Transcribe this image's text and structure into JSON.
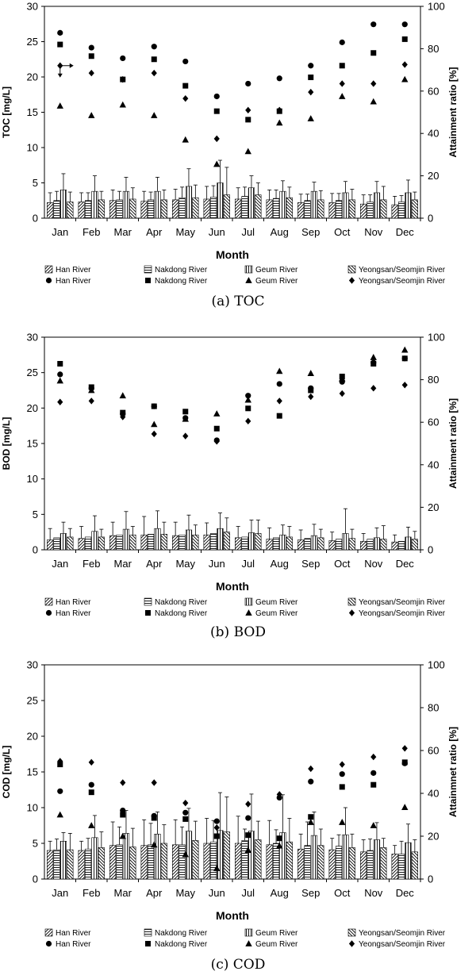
{
  "chart_data": [
    {
      "type": "bar",
      "caption": "(a) TOC",
      "categories": [
        "Jan",
        "Feb",
        "Mar",
        "Apr",
        "May",
        "Jun",
        "Jul",
        "Aug",
        "Sep",
        "Oct",
        "Nov",
        "Dec"
      ],
      "xlabel": "Month",
      "ylabel": "TOC [mg/L]",
      "y2label": "Attainment ratio [%]",
      "ylim": [
        0,
        30
      ],
      "y2lim": [
        0,
        100
      ],
      "yticks": [
        0,
        5,
        10,
        15,
        20,
        25,
        30
      ],
      "y2ticks": [
        0,
        20,
        40,
        60,
        80,
        100
      ],
      "series": [
        {
          "name": "Han River",
          "kind": "bar",
          "pattern": "diag",
          "values": [
            2.2,
            2.3,
            2.5,
            2.4,
            2.6,
            2.7,
            2.7,
            2.6,
            2.2,
            2.2,
            2.0,
            1.9
          ],
          "errors": [
            1.4,
            1.3,
            1.5,
            1.4,
            1.5,
            1.8,
            1.6,
            1.4,
            1.2,
            1.3,
            1.3,
            1.2
          ]
        },
        {
          "name": "Nakdong River",
          "kind": "bar",
          "pattern": "hlines",
          "values": [
            2.5,
            2.5,
            2.6,
            2.6,
            2.9,
            3.0,
            3.1,
            2.8,
            2.5,
            2.5,
            2.3,
            2.3
          ],
          "errors": [
            1.3,
            1.1,
            1.2,
            1.1,
            1.5,
            1.6,
            1.3,
            1.2,
            0.9,
            1.0,
            1.0,
            0.9
          ]
        },
        {
          "name": "Geum River",
          "kind": "bar",
          "pattern": "vlines",
          "values": [
            4.0,
            3.8,
            3.8,
            3.8,
            4.5,
            5.0,
            4.3,
            3.8,
            3.8,
            3.6,
            3.6,
            3.6
          ],
          "errors": [
            2.3,
            2.2,
            2.0,
            2.0,
            2.5,
            3.2,
            1.7,
            1.5,
            1.3,
            1.6,
            1.6,
            1.8
          ]
        },
        {
          "name": "Yeongsan/Seomjin River",
          "kind": "bar",
          "pattern": "backdiag",
          "values": [
            2.3,
            2.6,
            2.7,
            2.6,
            2.9,
            3.3,
            3.3,
            2.9,
            2.6,
            2.6,
            2.6,
            2.6
          ],
          "errors": [
            1.4,
            1.2,
            1.6,
            1.4,
            1.8,
            3.9,
            1.7,
            1.5,
            1.3,
            1.5,
            1.9,
            1.1
          ]
        },
        {
          "name": "Han River",
          "kind": "marker",
          "marker": "circle",
          "axis": "right",
          "values": [
            87.5,
            80.5,
            75.5,
            81.0,
            74.0,
            57.5,
            63.5,
            66.0,
            72.0,
            83.0,
            91.5,
            91.5
          ]
        },
        {
          "name": "Nakdong River",
          "kind": "marker",
          "marker": "square",
          "axis": "right",
          "values": [
            82.0,
            76.5,
            65.5,
            75.0,
            62.5,
            50.5,
            46.5,
            50.5,
            66.5,
            72.0,
            78.0,
            84.5
          ]
        },
        {
          "name": "Geum River",
          "kind": "marker",
          "marker": "triangle",
          "axis": "right",
          "values": [
            53.0,
            48.5,
            53.5,
            48.5,
            37.0,
            25.5,
            31.5,
            45.0,
            47.0,
            57.5,
            55.0,
            65.5
          ]
        },
        {
          "name": "Yeongsan/Seomjin River",
          "kind": "marker",
          "marker": "diamond",
          "axis": "right",
          "values": [
            72.0,
            68.5,
            65.5,
            68.5,
            56.5,
            37.5,
            51.0,
            51.0,
            59.5,
            63.5,
            63.5,
            72.5
          ]
        }
      ]
    },
    {
      "type": "bar",
      "caption": "(b) BOD",
      "categories": [
        "Jan",
        "Feb",
        "Mar",
        "Apr",
        "May",
        "Jun",
        "Jul",
        "Aug",
        "Sep",
        "Oct",
        "Nov",
        "Dec"
      ],
      "xlabel": "Month",
      "ylabel": "BOD [mg/L]",
      "y2label": "Attainment ratio [%]",
      "ylim": [
        0,
        30
      ],
      "y2lim": [
        0,
        100
      ],
      "yticks": [
        0,
        5,
        10,
        15,
        20,
        25,
        30
      ],
      "y2ticks": [
        0,
        20,
        40,
        60,
        80,
        100
      ],
      "series": [
        {
          "name": "Han River",
          "kind": "bar",
          "pattern": "diag",
          "values": [
            1.4,
            1.6,
            2.0,
            2.1,
            2.0,
            2.1,
            1.7,
            1.5,
            1.4,
            1.3,
            1.2,
            1.1
          ],
          "errors": [
            1.6,
            1.7,
            1.9,
            2.6,
            1.9,
            1.7,
            1.6,
            1.6,
            1.4,
            1.2,
            1.1,
            1.0
          ]
        },
        {
          "name": "Nakdong River",
          "kind": "bar",
          "pattern": "hlines",
          "values": [
            1.7,
            1.8,
            2.1,
            2.2,
            2.1,
            2.3,
            1.8,
            1.7,
            1.6,
            1.5,
            1.5,
            1.2
          ]
        },
        {
          "name": "Geum River",
          "kind": "bar",
          "pattern": "vlines",
          "values": [
            2.3,
            2.6,
            2.9,
            3.0,
            2.8,
            3.0,
            2.4,
            2.1,
            2.0,
            2.3,
            1.7,
            1.8
          ],
          "errors": [
            1.6,
            2.2,
            2.5,
            2.5,
            2.1,
            2.2,
            1.8,
            1.4,
            1.6,
            3.5,
            1.4,
            1.4
          ]
        },
        {
          "name": "Yeongsan/Seomjin River",
          "kind": "bar",
          "pattern": "backdiag",
          "values": [
            1.8,
            1.8,
            2.1,
            2.2,
            2.1,
            2.5,
            2.3,
            1.8,
            1.7,
            1.6,
            1.5,
            1.5
          ],
          "errors": [
            1.2,
            1.1,
            1.2,
            1.7,
            1.4,
            2.0,
            1.9,
            1.5,
            1.2,
            1.3,
            1.9,
            1.1
          ]
        },
        {
          "name": "Han River",
          "kind": "marker",
          "marker": "circle",
          "axis": "right",
          "values": [
            82.5,
            76.0,
            64.0,
            67.5,
            62.0,
            51.5,
            72.5,
            78.0,
            76.0,
            79.0,
            88.0,
            90.0
          ]
        },
        {
          "name": "Nakdong River",
          "kind": "marker",
          "marker": "square",
          "axis": "right",
          "values": [
            87.5,
            76.5,
            64.5,
            67.5,
            65.0,
            57.0,
            66.5,
            63.0,
            75.0,
            81.5,
            87.5,
            90.0
          ]
        },
        {
          "name": "Geum River",
          "kind": "marker",
          "marker": "triangle",
          "axis": "right",
          "values": [
            79.5,
            75.0,
            72.5,
            59.0,
            61.5,
            64.0,
            70.5,
            84.0,
            83.0,
            80.5,
            90.5,
            94.0
          ]
        },
        {
          "name": "Yeongsan/Seomjin River",
          "kind": "marker",
          "marker": "diamond",
          "axis": "right",
          "values": [
            69.5,
            70.0,
            62.5,
            54.5,
            53.5,
            51.0,
            60.5,
            70.0,
            72.0,
            73.5,
            76.0,
            77.5
          ]
        }
      ]
    },
    {
      "type": "bar",
      "caption": "(c) COD",
      "categories": [
        "Jan",
        "Feb",
        "Mar",
        "Apr",
        "May",
        "Jun",
        "Jul",
        "Aug",
        "Sep",
        "Oct",
        "Nov",
        "Dec"
      ],
      "xlabel": "Month",
      "ylabel": "COD [mg/L]",
      "y2label": "Attainmnet ratio [%]",
      "ylim": [
        0,
        30
      ],
      "y2lim": [
        0,
        100
      ],
      "yticks": [
        0,
        5,
        10,
        15,
        20,
        25,
        30
      ],
      "y2ticks": [
        0,
        20,
        40,
        60,
        80,
        100
      ],
      "series": [
        {
          "name": "Han River",
          "kind": "bar",
          "pattern": "diag",
          "values": [
            4.0,
            4.0,
            4.7,
            4.7,
            4.8,
            5.0,
            5.0,
            4.8,
            4.2,
            4.1,
            3.8,
            3.5
          ],
          "errors": [
            1.3,
            1.3,
            3.3,
            3.6,
            3.5,
            3.5,
            3.8,
            3.4,
            2.1,
            1.6,
            1.7,
            1.2
          ]
        },
        {
          "name": "Nakdong River",
          "kind": "bar",
          "pattern": "hlines",
          "values": [
            4.1,
            4.2,
            4.8,
            4.8,
            4.8,
            5.2,
            5.4,
            5.0,
            4.7,
            4.6,
            4.0,
            3.5
          ],
          "errors": [
            1.5,
            1.5,
            2.5,
            3.0,
            2.5,
            3.0,
            1.6,
            1.9,
            3.3,
            1.6,
            1.6,
            1.8
          ]
        },
        {
          "name": "Geum River",
          "kind": "bar",
          "pattern": "vlines",
          "values": [
            5.3,
            5.8,
            6.4,
            6.3,
            6.7,
            6.8,
            6.7,
            6.5,
            6.1,
            6.2,
            5.5,
            5.1
          ],
          "errors": [
            1.2,
            3.1,
            3.2,
            3.1,
            3.2,
            5.3,
            5.2,
            5.3,
            3.3,
            3.8,
            2.4,
            2.6
          ]
        },
        {
          "name": "Yeongsan/Seomjin River",
          "kind": "bar",
          "pattern": "backdiag",
          "values": [
            4.1,
            4.4,
            4.5,
            5.0,
            5.4,
            6.6,
            5.5,
            5.2,
            4.7,
            4.4,
            4.4,
            3.8
          ],
          "errors": [
            2.3,
            2.2,
            2.6,
            2.6,
            2.7,
            4.9,
            2.6,
            3.3,
            2.3,
            1.9,
            1.3,
            1.7
          ]
        },
        {
          "name": "Han River",
          "kind": "marker",
          "marker": "circle",
          "axis": "right",
          "values": [
            41.0,
            44.0,
            32.0,
            29.5,
            31.0,
            27.0,
            28.5,
            38.0,
            45.5,
            49.0,
            49.5,
            54.0
          ]
        },
        {
          "name": "Nakdong River",
          "kind": "marker",
          "marker": "square",
          "axis": "right",
          "values": [
            53.5,
            40.5,
            30.0,
            28.5,
            28.0,
            20.0,
            20.5,
            19.0,
            29.0,
            43.0,
            44.0,
            54.5
          ]
        },
        {
          "name": "Geum River",
          "kind": "marker",
          "marker": "triangle",
          "axis": "right",
          "values": [
            30.0,
            25.0,
            20.0,
            16.0,
            11.5,
            5.0,
            13.5,
            15.5,
            26.5,
            26.5,
            25.0,
            33.5
          ]
        },
        {
          "name": "Yeongsan/Seomjin River",
          "kind": "marker",
          "marker": "diamond",
          "axis": "right",
          "values": [
            55.0,
            54.5,
            45.0,
            45.0,
            35.5,
            24.0,
            35.0,
            39.5,
            51.5,
            53.5,
            57.0,
            61.0
          ]
        }
      ]
    }
  ]
}
